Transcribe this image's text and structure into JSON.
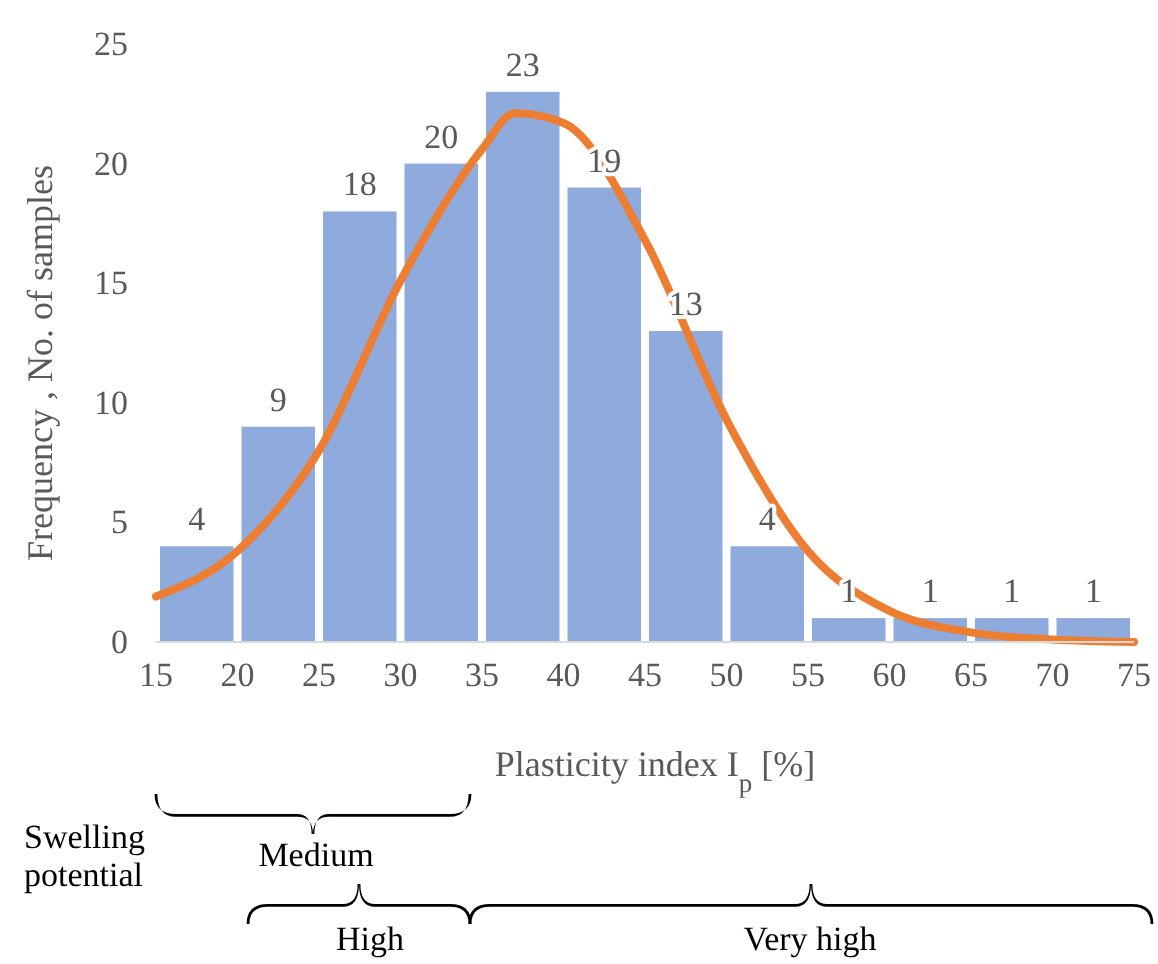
{
  "chart_data": {
    "type": "histogram",
    "xlabel": "Plasticity index I$_{p}$ [%]",
    "ylabel": "Frequency , No. of samples",
    "bins": [
      15,
      20,
      25,
      30,
      35,
      40,
      45,
      50,
      55,
      60,
      65,
      70,
      75
    ],
    "values": [
      4,
      9,
      18,
      20,
      23,
      19,
      13,
      4,
      1,
      1,
      1,
      1
    ],
    "color": "#8faadc",
    "value_labels": [
      "4",
      "9",
      "18",
      "20",
      "23",
      "19",
      "13",
      "4",
      "1",
      "1",
      "1",
      "1"
    ],
    "series": [
      {
        "type": "line",
        "color": "#ed7d31",
        "x": [
          15,
          20,
          25,
          30,
          35,
          37,
          40,
          45,
          50,
          55,
          60,
          65,
          70,
          75
        ],
        "values": [
          1.9,
          3.8,
          8.0,
          15.1,
          20.6,
          22.1,
          21.7,
          16.8,
          9.3,
          3.8,
          1.3,
          0.4,
          0.1,
          0
        ]
      }
    ],
    "xlim": [
      15,
      75
    ],
    "xticks": [
      15,
      20,
      25,
      30,
      35,
      40,
      45,
      50,
      55,
      60,
      65,
      70,
      75
    ],
    "ylim": [
      0,
      25
    ],
    "yticks": [
      0,
      5,
      10,
      15,
      20,
      25
    ],
    "grid": false,
    "annotations": [
      "Swelling potential",
      "Medium",
      "High",
      "Very high"
    ]
  }
}
